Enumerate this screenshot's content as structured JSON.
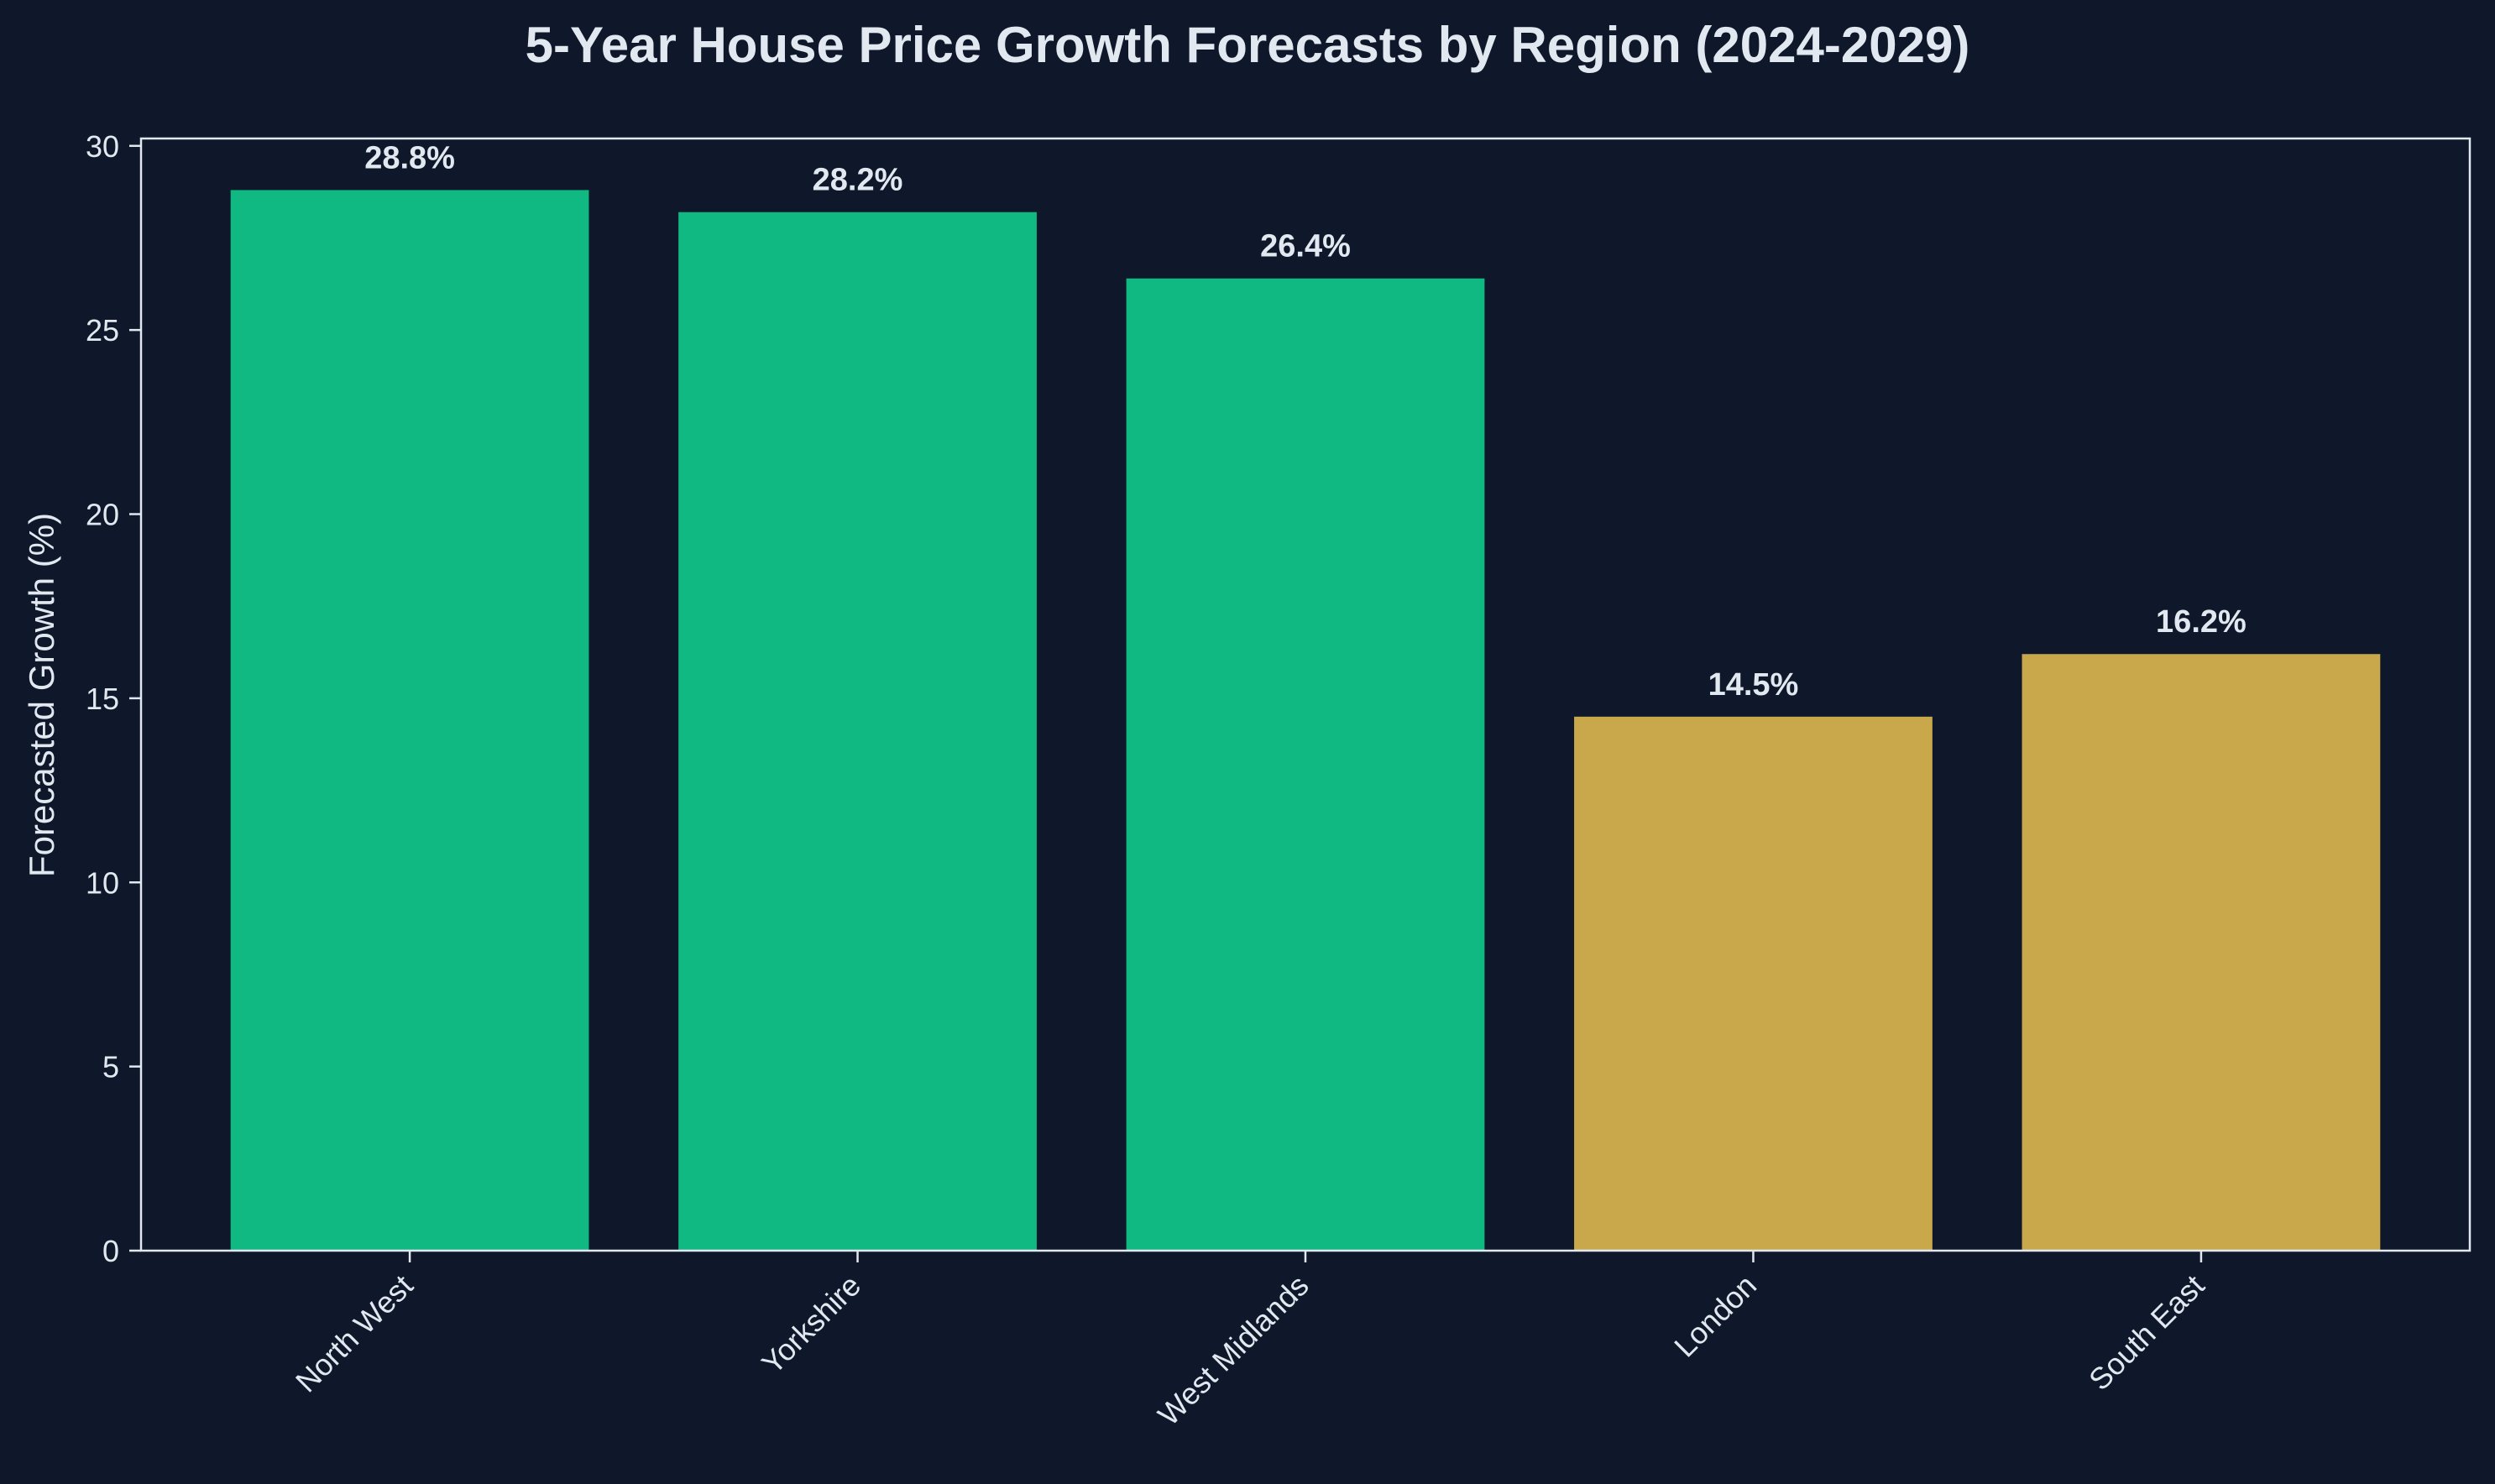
{
  "colors": {
    "background": "#0f172a",
    "text": "#e2e8f0",
    "axis": "#e2e8f0",
    "growth_high": "#10b981",
    "growth_low": "#c9a84c"
  },
  "chart_data": {
    "type": "bar",
    "title": "5-Year House Price Growth Forecasts by Region (2024-2029)",
    "xlabel": "",
    "ylabel": "Forecasted Growth (%)",
    "categories": [
      "North West",
      "Yorkshire",
      "West Midlands",
      "London",
      "South East"
    ],
    "values": [
      28.8,
      28.2,
      26.4,
      14.5,
      16.2
    ],
    "value_labels": [
      "28.8%",
      "28.2%",
      "26.4%",
      "14.5%",
      "16.2%"
    ],
    "bar_colors": [
      "#10b981",
      "#10b981",
      "#10b981",
      "#c9a84c",
      "#c9a84c"
    ],
    "ylim": [
      0,
      30.2
    ],
    "yticks": [
      0,
      5,
      10,
      15,
      20,
      25,
      30
    ],
    "ytick_labels": [
      "0",
      "5",
      "10",
      "15",
      "20",
      "25",
      "30"
    ],
    "grid": false,
    "legend": "none"
  }
}
